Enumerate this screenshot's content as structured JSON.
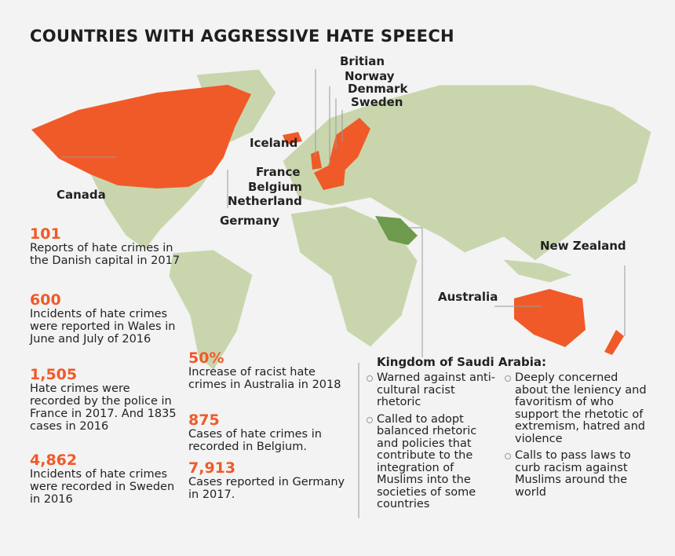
{
  "title": "COUNTRIES WITH AGGRESSIVE HATE SPEECH",
  "map_labels": {
    "britian": "Britian",
    "norway": "Norway",
    "denmark": "Denmark",
    "sweden": "Sweden",
    "iceland": "Iceland",
    "france": "France",
    "belgium": "Belgium",
    "netherland": "Netherland",
    "germany": "Germany",
    "canada": "Canada",
    "new_zealand": "New Zealand",
    "australia": "Australia"
  },
  "stats_left": [
    {
      "value": "101",
      "text": "Reports of hate crimes in the Danish capital in 2017"
    },
    {
      "value": "600",
      "text": "Incidents of hate crimes were reported in Wales in June and July of 2016"
    },
    {
      "value": "1,505",
      "text": "Hate crimes were recorded by the police in France in 2017. And 1835 cases in 2016"
    },
    {
      "value": "4,862",
      "text": "Incidents of hate crimes were recorded in Sweden in 2016"
    }
  ],
  "stats_right": [
    {
      "value": "50%",
      "text": "Increase of racist hate crimes in Australia in 2018"
    },
    {
      "value": "875",
      "text": "Cases of hate crimes in recorded in Belgium."
    },
    {
      "value": "7,913",
      "text": "Cases reported in Germany in 2017."
    }
  ],
  "saudi": {
    "title": "Kingdom of Saudi Arabia:",
    "bullets_left": [
      "Warned against anti-cultural racist rhetoric",
      "Called to adopt balanced rhetoric and policies that contribute to the integration of Muslims into the societies of some countries"
    ],
    "bullets_right": [
      "Deeply concerned about the leniency and favoritism of who support the rhetotic of extremism, hatred and violence",
      "Calls to pass laws to curb racism against Muslims around the world"
    ]
  }
}
